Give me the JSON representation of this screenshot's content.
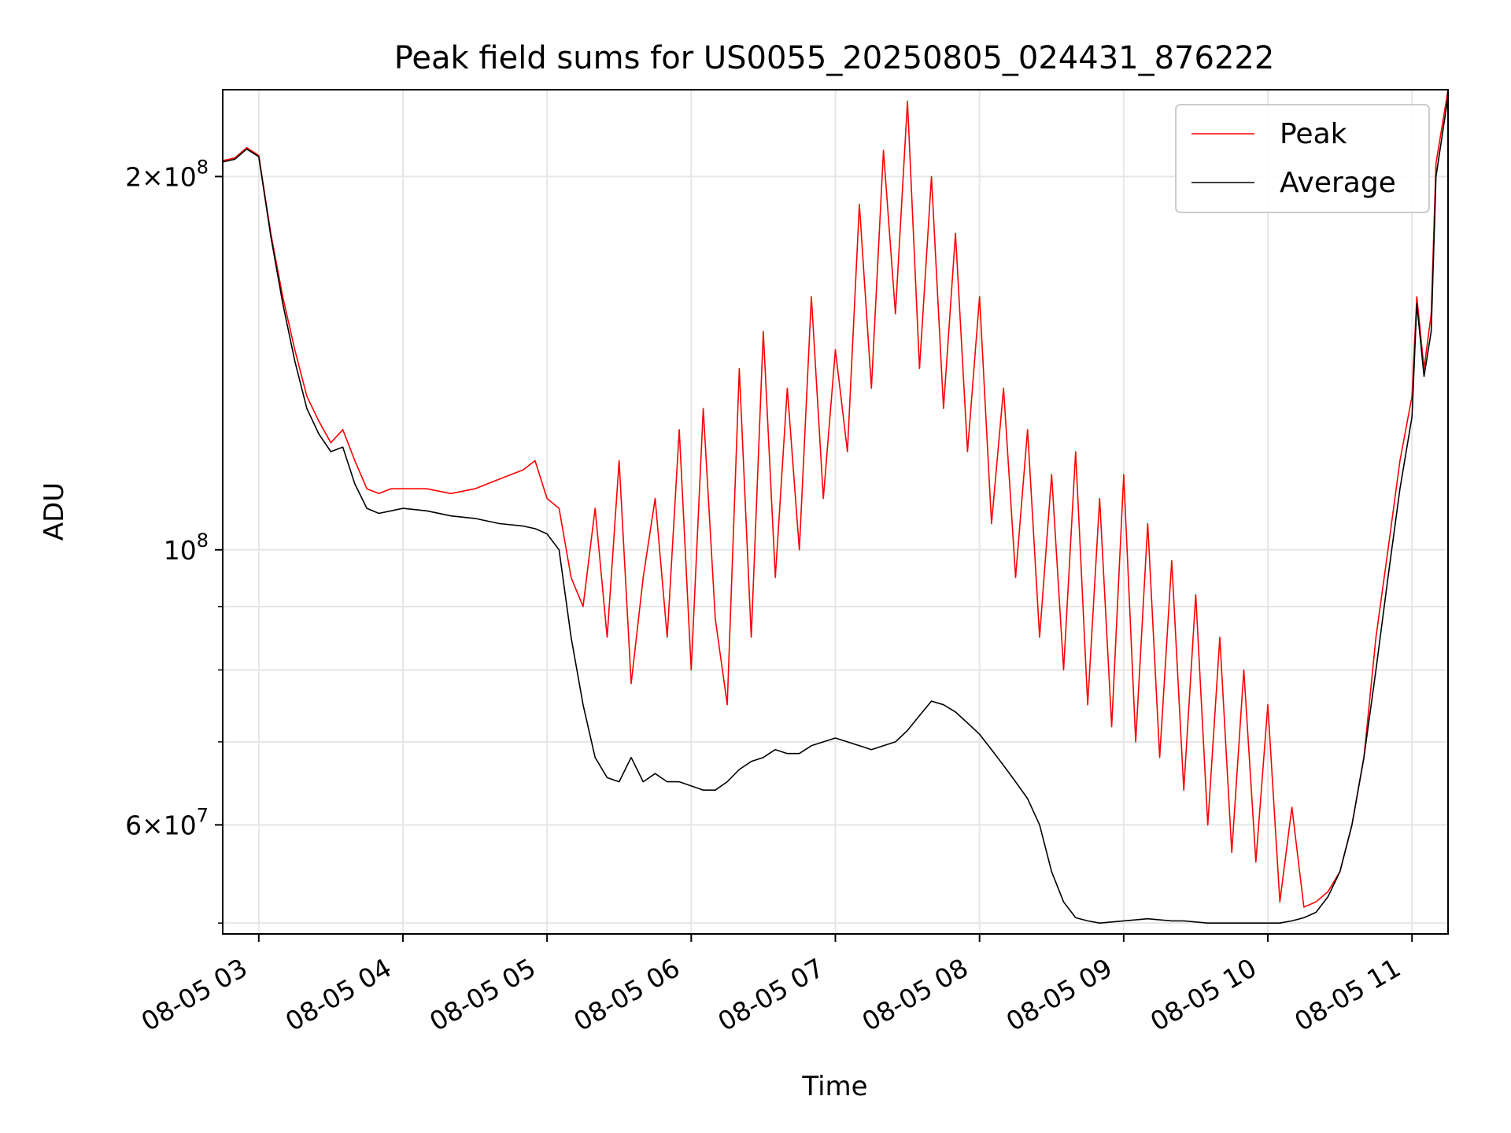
{
  "chart_data": {
    "type": "line",
    "title": "Peak field sums for US0055_20250805_024431_876222",
    "xlabel": "Time",
    "ylabel": "ADU",
    "y_scale": "log",
    "ylim": [
      49000000,
      235000000
    ],
    "xlim": [
      "08-05 02:45",
      "08-05 11:15"
    ],
    "grid": true,
    "legend_position": "top-right",
    "x_ticks": [
      {
        "time": "08-05 03:00",
        "label": "08-05 03"
      },
      {
        "time": "08-05 04:00",
        "label": "08-05 04"
      },
      {
        "time": "08-05 05:00",
        "label": "08-05 05"
      },
      {
        "time": "08-05 06:00",
        "label": "08-05 06"
      },
      {
        "time": "08-05 07:00",
        "label": "08-05 07"
      },
      {
        "time": "08-05 08:00",
        "label": "08-05 08"
      },
      {
        "time": "08-05 09:00",
        "label": "08-05 09"
      },
      {
        "time": "08-05 10:00",
        "label": "08-05 10"
      },
      {
        "time": "08-05 11:00",
        "label": "08-05 11"
      }
    ],
    "y_major_ticks": [
      {
        "value": 60000000,
        "mantissa": "6",
        "exponent": "7"
      },
      {
        "value": 100000000,
        "mantissa": "",
        "exponent": "8"
      },
      {
        "value": 200000000,
        "mantissa": "2",
        "exponent": "8"
      }
    ],
    "y_minor_ticks": [
      50000000,
      70000000,
      80000000,
      90000000
    ],
    "x": [
      "08-05 02:45",
      "08-05 02:50",
      "08-05 02:55",
      "08-05 03:00",
      "08-05 03:05",
      "08-05 03:10",
      "08-05 03:15",
      "08-05 03:20",
      "08-05 03:25",
      "08-05 03:30",
      "08-05 03:35",
      "08-05 03:40",
      "08-05 03:45",
      "08-05 03:50",
      "08-05 03:55",
      "08-05 04:00",
      "08-05 04:10",
      "08-05 04:20",
      "08-05 04:30",
      "08-05 04:40",
      "08-05 04:50",
      "08-05 04:55",
      "08-05 05:00",
      "08-05 05:05",
      "08-05 05:10",
      "08-05 05:15",
      "08-05 05:20",
      "08-05 05:25",
      "08-05 05:30",
      "08-05 05:35",
      "08-05 05:40",
      "08-05 05:45",
      "08-05 05:50",
      "08-05 05:55",
      "08-05 06:00",
      "08-05 06:05",
      "08-05 06:10",
      "08-05 06:15",
      "08-05 06:20",
      "08-05 06:25",
      "08-05 06:30",
      "08-05 06:35",
      "08-05 06:40",
      "08-05 06:45",
      "08-05 06:50",
      "08-05 06:55",
      "08-05 07:00",
      "08-05 07:05",
      "08-05 07:10",
      "08-05 07:15",
      "08-05 07:20",
      "08-05 07:25",
      "08-05 07:30",
      "08-05 07:35",
      "08-05 07:40",
      "08-05 07:45",
      "08-05 07:50",
      "08-05 07:55",
      "08-05 08:00",
      "08-05 08:05",
      "08-05 08:10",
      "08-05 08:15",
      "08-05 08:20",
      "08-05 08:25",
      "08-05 08:30",
      "08-05 08:35",
      "08-05 08:40",
      "08-05 08:45",
      "08-05 08:50",
      "08-05 08:55",
      "08-05 09:00",
      "08-05 09:05",
      "08-05 09:10",
      "08-05 09:15",
      "08-05 09:20",
      "08-05 09:25",
      "08-05 09:30",
      "08-05 09:35",
      "08-05 09:40",
      "08-05 09:45",
      "08-05 09:50",
      "08-05 09:55",
      "08-05 10:00",
      "08-05 10:05",
      "08-05 10:10",
      "08-05 10:15",
      "08-05 10:20",
      "08-05 10:25",
      "08-05 10:30",
      "08-05 10:35",
      "08-05 10:40",
      "08-05 10:45",
      "08-05 10:50",
      "08-05 10:55",
      "08-05 11:00",
      "08-05 11:02",
      "08-05 11:05",
      "08-05 11:08",
      "08-05 11:10",
      "08-05 11:15"
    ],
    "series": [
      {
        "name": "Peak",
        "color": "#ff0000",
        "values": [
          206000000,
          207000000,
          211000000,
          208000000,
          180000000,
          160000000,
          145000000,
          133000000,
          127000000,
          122000000,
          125000000,
          118000000,
          112000000,
          111000000,
          112000000,
          112000000,
          112000000,
          111000000,
          112000000,
          114000000,
          116000000,
          118000000,
          110000000,
          108000000,
          95000000,
          90000000,
          108000000,
          85000000,
          118000000,
          78000000,
          95000000,
          110000000,
          85000000,
          125000000,
          80000000,
          130000000,
          88000000,
          75000000,
          140000000,
          85000000,
          150000000,
          95000000,
          135000000,
          100000000,
          160000000,
          110000000,
          145000000,
          120000000,
          190000000,
          135000000,
          210000000,
          155000000,
          230000000,
          140000000,
          200000000,
          130000000,
          180000000,
          120000000,
          160000000,
          105000000,
          135000000,
          95000000,
          125000000,
          85000000,
          115000000,
          80000000,
          120000000,
          75000000,
          110000000,
          72000000,
          115000000,
          70000000,
          105000000,
          68000000,
          98000000,
          64000000,
          92000000,
          60000000,
          85000000,
          57000000,
          80000000,
          56000000,
          75000000,
          52000000,
          62000000,
          51500000,
          52000000,
          53000000,
          55000000,
          60000000,
          68000000,
          85000000,
          100000000,
          118000000,
          133000000,
          160000000,
          140000000,
          155000000,
          205000000,
          235000000
        ]
      },
      {
        "name": "Average",
        "color": "#000000",
        "values": [
          205500000,
          206500000,
          210500000,
          207500000,
          179000000,
          158000000,
          142000000,
          130000000,
          124000000,
          120000000,
          121000000,
          113000000,
          108000000,
          107000000,
          107500000,
          108000000,
          107500000,
          106500000,
          106000000,
          105000000,
          104500000,
          104000000,
          103000000,
          100000000,
          85000000,
          75000000,
          68000000,
          65500000,
          65000000,
          68000000,
          65000000,
          66000000,
          65000000,
          65000000,
          64500000,
          64000000,
          64000000,
          65000000,
          66500000,
          67500000,
          68000000,
          69000000,
          68500000,
          68500000,
          69500000,
          70000000,
          70500000,
          70000000,
          69500000,
          69000000,
          69500000,
          70000000,
          71500000,
          73500000,
          75500000,
          75000000,
          74000000,
          72500000,
          71000000,
          69000000,
          67000000,
          65000000,
          63000000,
          60000000,
          55000000,
          52000000,
          50500000,
          50200000,
          50000000,
          50100000,
          50200000,
          50300000,
          50400000,
          50300000,
          50200000,
          50200000,
          50100000,
          50000000,
          50000000,
          50000000,
          50000000,
          50000000,
          50000000,
          50000000,
          50200000,
          50500000,
          51000000,
          52500000,
          55000000,
          60000000,
          68000000,
          80000000,
          95000000,
          112000000,
          128000000,
          158000000,
          138000000,
          150000000,
          200000000,
          232000000
        ]
      }
    ]
  }
}
